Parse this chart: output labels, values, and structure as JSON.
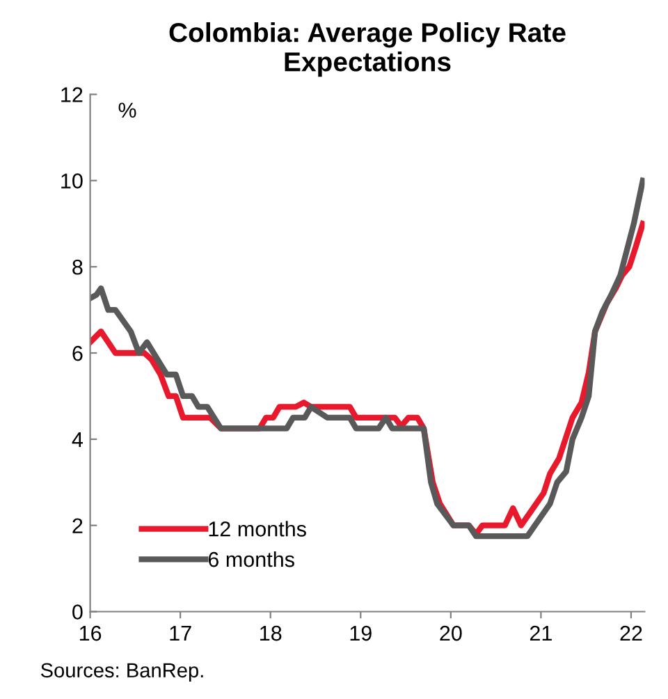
{
  "chart_data": {
    "type": "line",
    "title": "Colombia: Average Policy Rate\nExpectations",
    "ylabel": "%",
    "annotations": [
      "Sources: BanRep."
    ],
    "xlim": [
      16,
      22.15
    ],
    "xticks": [
      16,
      17,
      18,
      19,
      20,
      21,
      22
    ],
    "ylim": [
      0,
      12
    ],
    "yticks": [
      0,
      2,
      4,
      6,
      8,
      10,
      12
    ],
    "grid": false,
    "legend": "bottom left",
    "line_style": "solid",
    "marker": "none",
    "series": [
      {
        "name": "12 months",
        "color": "#e8192c",
        "x": [
          16.0,
          16.12,
          16.28,
          16.6,
          16.68,
          16.78,
          16.87,
          16.95,
          17.03,
          17.33,
          17.45,
          17.88,
          17.95,
          18.03,
          18.1,
          18.28,
          18.37,
          18.45,
          18.88,
          18.95,
          19.38,
          19.45,
          19.53,
          19.63,
          19.7,
          19.8,
          19.88,
          20.03,
          20.2,
          20.28,
          20.35,
          20.6,
          20.69,
          20.78,
          21.03,
          21.1,
          21.2,
          21.35,
          21.45,
          21.53,
          21.6,
          21.73,
          21.83,
          21.9,
          21.98,
          22.05,
          22.13
        ],
        "values": [
          6.25,
          6.5,
          6.0,
          6.0,
          5.85,
          5.5,
          5.0,
          5.0,
          4.5,
          4.5,
          4.25,
          4.25,
          4.5,
          4.5,
          4.75,
          4.75,
          4.85,
          4.75,
          4.75,
          4.5,
          4.5,
          4.3,
          4.5,
          4.5,
          4.25,
          3.0,
          2.5,
          2.0,
          2.0,
          1.8,
          2.0,
          2.0,
          2.4,
          2.0,
          2.75,
          3.2,
          3.55,
          4.5,
          4.85,
          5.55,
          6.5,
          7.15,
          7.5,
          7.8,
          8.0,
          8.45,
          9.0
        ]
      },
      {
        "name": "6 months",
        "color": "#595959",
        "x": [
          16.0,
          16.07,
          16.12,
          16.2,
          16.28,
          16.45,
          16.54,
          16.63,
          16.85,
          16.95,
          17.03,
          17.13,
          17.2,
          17.3,
          17.45,
          18.18,
          18.25,
          18.38,
          18.45,
          18.63,
          18.88,
          18.95,
          19.2,
          19.28,
          19.35,
          19.7,
          19.78,
          19.85,
          20.03,
          20.2,
          20.28,
          20.85,
          21.1,
          21.18,
          21.28,
          21.35,
          21.45,
          21.53,
          21.6,
          21.68,
          21.78,
          21.88,
          22.03,
          22.13
        ],
        "values": [
          7.27,
          7.35,
          7.5,
          7.0,
          7.0,
          6.5,
          6.0,
          6.25,
          5.5,
          5.5,
          5.0,
          5.0,
          4.75,
          4.75,
          4.25,
          4.25,
          4.5,
          4.5,
          4.75,
          4.5,
          4.5,
          4.25,
          4.25,
          4.5,
          4.25,
          4.25,
          3.0,
          2.5,
          2.0,
          2.0,
          1.75,
          1.75,
          2.5,
          3.0,
          3.25,
          4.0,
          4.5,
          5.0,
          6.5,
          6.95,
          7.35,
          7.8,
          9.0,
          10.0
        ]
      }
    ]
  }
}
